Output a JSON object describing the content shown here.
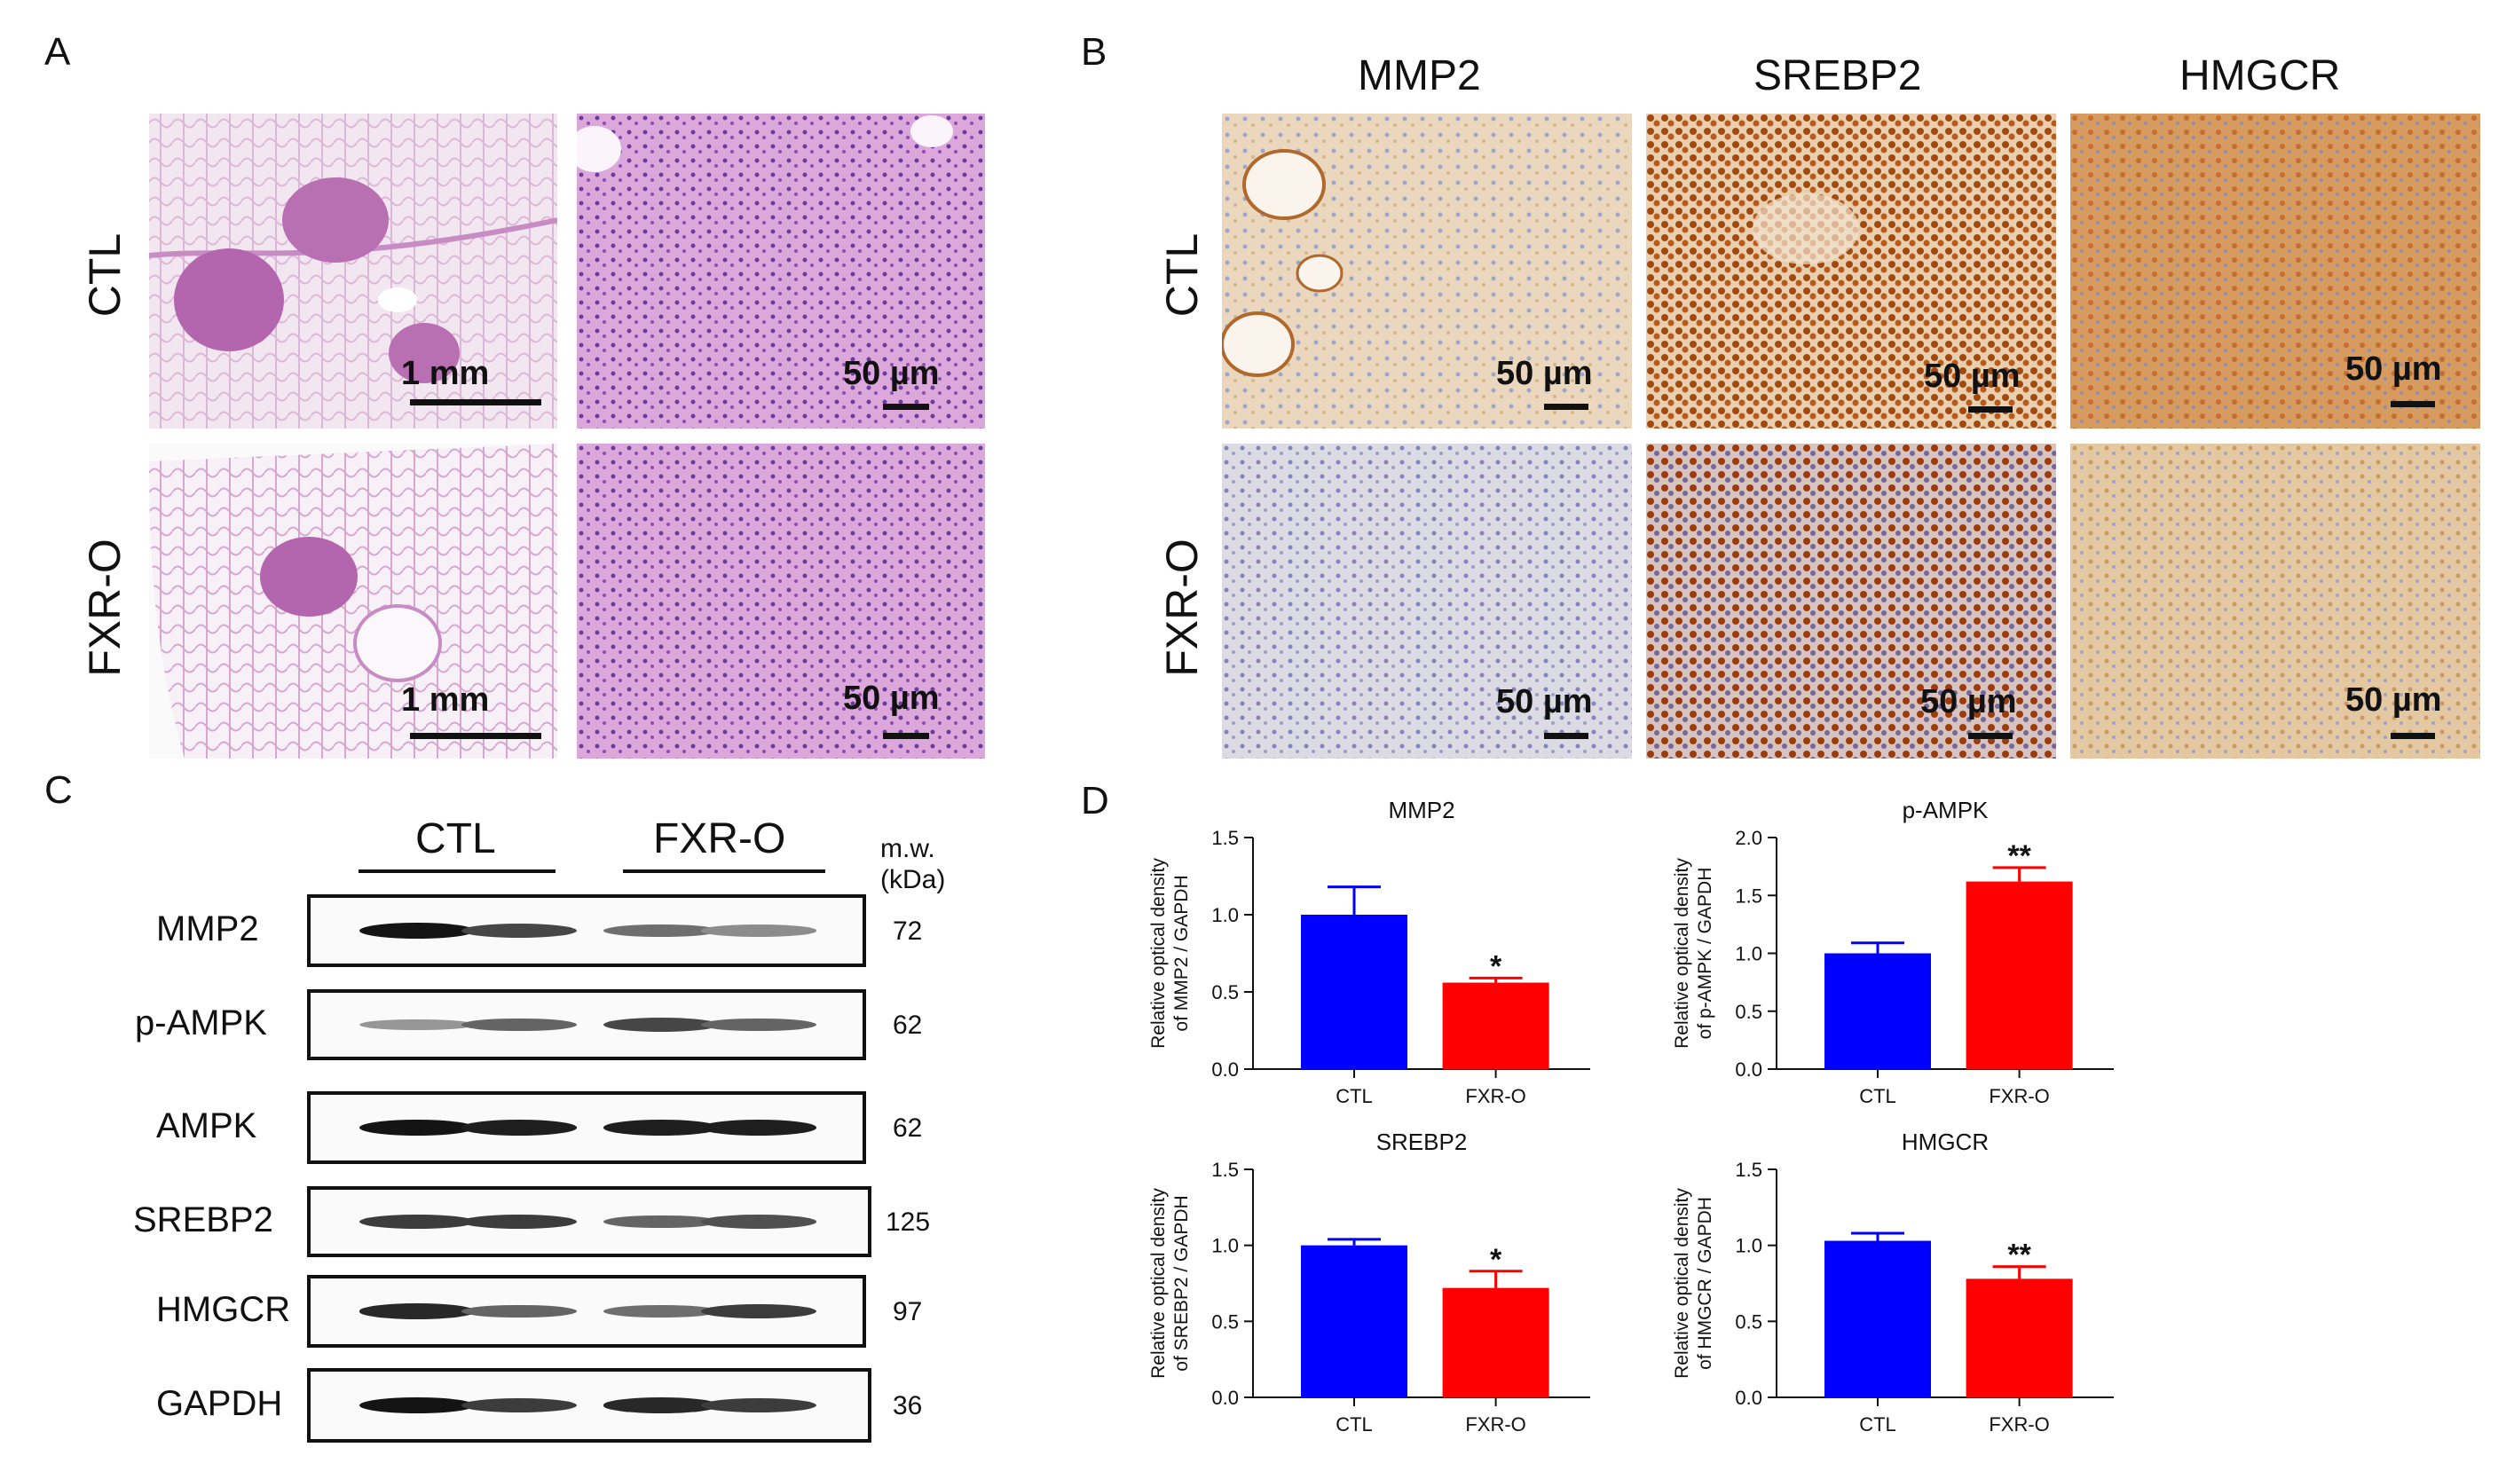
{
  "panels": {
    "A": "A",
    "B": "B",
    "C": "C",
    "D": "D"
  },
  "panel_a": {
    "rows": [
      "CTL",
      "FXR-O"
    ],
    "scalebars": [
      "1 mm",
      "50 µm",
      "1 mm",
      "50 µm"
    ]
  },
  "panel_b": {
    "columns": [
      "MMP2",
      "SREBP2",
      "HMGCR"
    ],
    "rows": [
      "CTL",
      "FXR-O"
    ],
    "scalebar": "50 µm"
  },
  "panel_c": {
    "groups": [
      "CTL",
      "FXR-O"
    ],
    "mw_header": [
      "m.w.",
      "(kDa)"
    ],
    "proteins": [
      {
        "name": "MMP2",
        "mw": "72",
        "intensity": [
          1.0,
          0.75,
          0.55,
          0.4
        ]
      },
      {
        "name": "p-AMPK",
        "mw": "62",
        "intensity": [
          0.35,
          0.6,
          0.75,
          0.6
        ]
      },
      {
        "name": "AMPK",
        "mw": "62",
        "intensity": [
          1.0,
          0.95,
          0.95,
          0.95
        ]
      },
      {
        "name": "SREBP2",
        "mw": "125",
        "intensity": [
          0.8,
          0.8,
          0.6,
          0.7
        ]
      },
      {
        "name": "HMGCR",
        "mw": "97",
        "intensity": [
          0.9,
          0.6,
          0.55,
          0.8
        ]
      },
      {
        "name": "GAPDH",
        "mw": "36",
        "intensity": [
          1.0,
          0.8,
          0.9,
          0.8
        ]
      }
    ]
  },
  "colors": {
    "ctl": "#0000ff",
    "fxr": "#ff0000",
    "ihc_brown": "#b06024",
    "he_pink": "#d9a0d4"
  },
  "chart_data": [
    {
      "type": "bar",
      "title": "MMP2",
      "categories": [
        "CTL",
        "FXR-O"
      ],
      "values": [
        1.0,
        0.56
      ],
      "errors": [
        0.18,
        0.03
      ],
      "sig": [
        "",
        "*"
      ],
      "ylabel": [
        "Relative optical density",
        "of MMP2 / GAPDH"
      ],
      "ylim": [
        0,
        1.5
      ],
      "ticks": [
        "0.0",
        "0.5",
        "1.0",
        "1.5"
      ],
      "tick_values": [
        0,
        0.5,
        1.0,
        1.5
      ]
    },
    {
      "type": "bar",
      "title": "p-AMPK",
      "categories": [
        "CTL",
        "FXR-O"
      ],
      "values": [
        1.0,
        1.62
      ],
      "errors": [
        0.09,
        0.12
      ],
      "sig": [
        "",
        "**"
      ],
      "ylabel": [
        "Relative optical density",
        "of p-AMPK / GAPDH"
      ],
      "ylim": [
        0,
        2.0
      ],
      "ticks": [
        "0.0",
        "0.5",
        "1.0",
        "1.5",
        "2.0"
      ],
      "tick_values": [
        0,
        0.5,
        1.0,
        1.5,
        2.0
      ]
    },
    {
      "type": "bar",
      "title": "SREBP2",
      "categories": [
        "CTL",
        "FXR-O"
      ],
      "values": [
        1.0,
        0.72
      ],
      "errors": [
        0.04,
        0.11
      ],
      "sig": [
        "",
        "*"
      ],
      "ylabel": [
        "Relative optical density",
        "of SREBP2 / GAPDH"
      ],
      "ylim": [
        0,
        1.5
      ],
      "ticks": [
        "0.0",
        "0.5",
        "1.0",
        "1.5"
      ],
      "tick_values": [
        0,
        0.5,
        1.0,
        1.5
      ]
    },
    {
      "type": "bar",
      "title": "HMGCR",
      "categories": [
        "CTL",
        "FXR-O"
      ],
      "values": [
        1.03,
        0.78
      ],
      "errors": [
        0.05,
        0.08
      ],
      "sig": [
        "",
        "**"
      ],
      "ylabel": [
        "Relative optical density",
        "of HMGCR / GAPDH"
      ],
      "ylim": [
        0,
        1.5
      ],
      "ticks": [
        "0.0",
        "0.5",
        "1.0",
        "1.5"
      ],
      "tick_values": [
        0,
        0.5,
        1.0,
        1.5
      ]
    }
  ]
}
